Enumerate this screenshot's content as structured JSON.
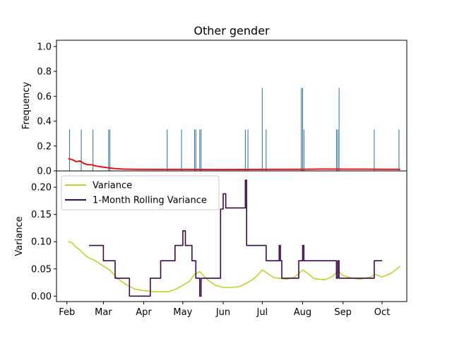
{
  "chart_data": [
    {
      "type": "bar",
      "title": "Other gender",
      "xlabel": "",
      "ylabel": "Frequency",
      "ylim": [
        0,
        1.05
      ],
      "yticks": [
        "0.0",
        "0.2",
        "0.4",
        "0.6",
        "0.8",
        "1.0"
      ],
      "bar_color": "#2c6e8f",
      "bars": {
        "x": [
          "2023-02-03",
          "2023-02-12",
          "2023-02-21",
          "2023-03-05",
          "2023-03-06",
          "2023-04-19",
          "2023-04-30",
          "2023-05-10",
          "2023-05-11",
          "2023-05-14",
          "2023-05-15",
          "2023-06-18",
          "2023-06-20",
          "2023-07-01",
          "2023-07-04",
          "2023-07-31",
          "2023-08-01",
          "2023-08-02",
          "2023-08-27",
          "2023-08-28",
          "2023-08-29",
          "2023-09-25",
          "2023-10-14"
        ],
        "y": [
          0.333,
          0.333,
          0.333,
          0.333,
          0.333,
          0.333,
          0.333,
          0.333,
          0.333,
          0.333,
          0.333,
          0.333,
          0.333,
          0.667,
          0.333,
          0.667,
          0.667,
          0.333,
          0.333,
          0.333,
          0.667,
          0.333,
          0.333
        ]
      },
      "line": {
        "color": "#e8161b",
        "x": [
          "2023-02-02",
          "2023-02-05",
          "2023-02-08",
          "2023-02-11",
          "2023-02-14",
          "2023-02-17",
          "2023-02-20",
          "2023-02-23",
          "2023-02-26",
          "2023-03-01",
          "2023-03-05",
          "2023-03-10",
          "2023-03-16",
          "2023-03-25",
          "2023-04-10",
          "2023-05-01",
          "2023-06-01",
          "2023-07-01",
          "2023-08-01",
          "2023-08-15",
          "2023-09-01",
          "2023-09-15",
          "2023-10-01",
          "2023-10-15"
        ],
        "y": [
          0.1,
          0.09,
          0.075,
          0.08,
          0.06,
          0.05,
          0.05,
          0.04,
          0.035,
          0.03,
          0.025,
          0.018,
          0.015,
          0.013,
          0.012,
          0.012,
          0.011,
          0.012,
          0.013,
          0.015,
          0.014,
          0.014,
          0.013,
          0.013
        ]
      }
    },
    {
      "type": "line",
      "xlabel": "",
      "ylabel": "Variance",
      "ylim": [
        -0.01,
        0.23
      ],
      "yticks": [
        "0.00",
        "0.05",
        "0.10",
        "0.15",
        "0.20"
      ],
      "xticks": [
        {
          "label": "Feb",
          "date": "2023-02-01"
        },
        {
          "label": "Mar",
          "date": "2023-03-01"
        },
        {
          "label": "Apr",
          "date": "2023-04-01"
        },
        {
          "label": "May",
          "date": "2023-05-01"
        },
        {
          "label": "Jun",
          "date": "2023-06-01"
        },
        {
          "label": "Jul",
          "date": "2023-07-01"
        },
        {
          "label": "Aug",
          "date": "2023-08-01"
        },
        {
          "label": "Sep",
          "date": "2023-09-01"
        },
        {
          "label": "Oct",
          "date": "2023-10-01"
        }
      ],
      "legend": {
        "placement": "top-left"
      },
      "series": [
        {
          "name": "Variance",
          "color": "#bcd530",
          "kind": "smooth",
          "x": [
            "2023-02-02",
            "2023-02-05",
            "2023-02-08",
            "2023-02-11",
            "2023-02-15",
            "2023-02-18",
            "2023-02-22",
            "2023-02-26",
            "2023-03-01",
            "2023-03-06",
            "2023-03-12",
            "2023-03-18",
            "2023-03-25",
            "2023-04-01",
            "2023-04-10",
            "2023-04-20",
            "2023-04-25",
            "2023-05-01",
            "2023-05-06",
            "2023-05-10",
            "2023-05-14",
            "2023-05-20",
            "2023-05-26",
            "2023-06-01",
            "2023-06-08",
            "2023-06-14",
            "2023-06-20",
            "2023-06-25",
            "2023-07-01",
            "2023-07-05",
            "2023-07-10",
            "2023-07-16",
            "2023-07-20",
            "2023-07-26",
            "2023-08-01",
            "2023-08-06",
            "2023-08-10",
            "2023-08-18",
            "2023-08-24",
            "2023-08-28",
            "2023-09-01",
            "2023-09-08",
            "2023-09-14",
            "2023-09-22",
            "2023-09-26",
            "2023-10-01",
            "2023-10-08",
            "2023-10-15"
          ],
          "y": [
            0.1,
            0.098,
            0.09,
            0.085,
            0.075,
            0.07,
            0.066,
            0.06,
            0.055,
            0.048,
            0.032,
            0.022,
            0.013,
            0.01,
            0.008,
            0.008,
            0.012,
            0.02,
            0.027,
            0.04,
            0.045,
            0.03,
            0.02,
            0.016,
            0.016,
            0.018,
            0.025,
            0.033,
            0.048,
            0.042,
            0.034,
            0.032,
            0.031,
            0.035,
            0.048,
            0.04,
            0.032,
            0.03,
            0.036,
            0.046,
            0.038,
            0.033,
            0.031,
            0.035,
            0.04,
            0.035,
            0.042,
            0.055
          ]
        },
        {
          "name": "1-Month Rolling Variance",
          "color": "#3d0a4e",
          "kind": "step",
          "x": [
            "2023-02-18",
            "2023-03-01",
            "2023-03-01",
            "2023-03-10",
            "2023-03-10",
            "2023-03-21",
            "2023-03-21",
            "2023-04-06",
            "2023-04-06",
            "2023-04-14",
            "2023-04-14",
            "2023-04-25",
            "2023-04-25",
            "2023-05-01",
            "2023-05-01",
            "2023-05-03",
            "2023-05-03",
            "2023-05-08",
            "2023-05-08",
            "2023-05-11",
            "2023-05-11",
            "2023-05-14",
            "2023-05-14",
            "2023-05-15",
            "2023-05-15",
            "2023-05-30",
            "2023-05-30",
            "2023-06-01",
            "2023-06-01",
            "2023-06-03",
            "2023-06-03",
            "2023-06-18",
            "2023-06-18",
            "2023-06-19",
            "2023-06-19",
            "2023-07-04",
            "2023-07-04",
            "2023-07-14",
            "2023-07-14",
            "2023-07-15",
            "2023-07-15",
            "2023-07-16",
            "2023-07-16",
            "2023-07-29",
            "2023-07-29",
            "2023-08-01",
            "2023-08-01",
            "2023-08-02",
            "2023-08-02",
            "2023-08-27",
            "2023-08-27",
            "2023-08-28",
            "2023-08-28",
            "2023-08-29",
            "2023-08-29",
            "2023-09-25",
            "2023-09-25",
            "2023-10-01"
          ],
          "y": [
            0.093,
            0.093,
            0.065,
            0.065,
            0.033,
            0.033,
            0.0,
            0.0,
            0.033,
            0.033,
            0.065,
            0.065,
            0.093,
            0.093,
            0.12,
            0.12,
            0.093,
            0.093,
            0.065,
            0.065,
            0.033,
            0.033,
            0.0,
            0.0,
            0.033,
            0.033,
            0.16,
            0.16,
            0.188,
            0.188,
            0.162,
            0.162,
            0.213,
            0.213,
            0.093,
            0.093,
            0.065,
            0.065,
            0.093,
            0.093,
            0.065,
            0.065,
            0.033,
            0.033,
            0.065,
            0.065,
            0.093,
            0.093,
            0.065,
            0.065,
            0.033,
            0.033,
            0.065,
            0.065,
            0.033,
            0.033,
            0.065,
            0.065
          ]
        }
      ]
    }
  ]
}
